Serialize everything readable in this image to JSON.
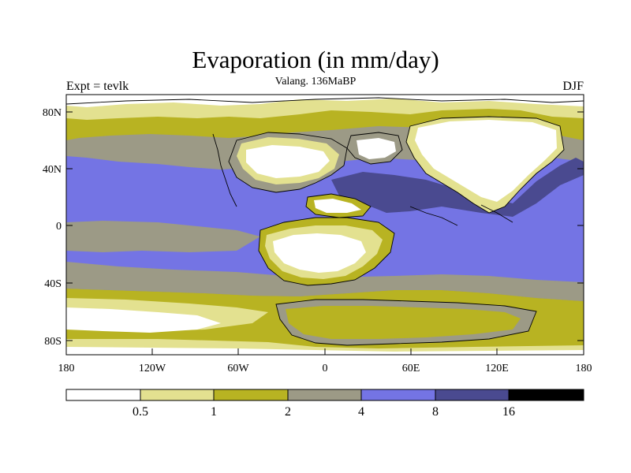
{
  "map": {
    "title": "Evaporation (in mm/day)",
    "subtitle": "Valang. 136MaBP",
    "left_label": "Expt = tevlk",
    "right_label": "DJF",
    "lat_ticks": [
      "80N",
      "40N",
      "0",
      "40S",
      "80S"
    ],
    "lon_ticks": [
      "180",
      "120W",
      "60W",
      "0",
      "60E",
      "120E",
      "180"
    ]
  },
  "legend": {
    "labels": [
      "0.5",
      "1",
      "2",
      "4",
      "8",
      "16"
    ],
    "colors": [
      "#ffffff",
      "#e3e190",
      "#b8b322",
      "#9c9a86",
      "#7474e4",
      "#4a4a90",
      "#000000"
    ]
  }
}
